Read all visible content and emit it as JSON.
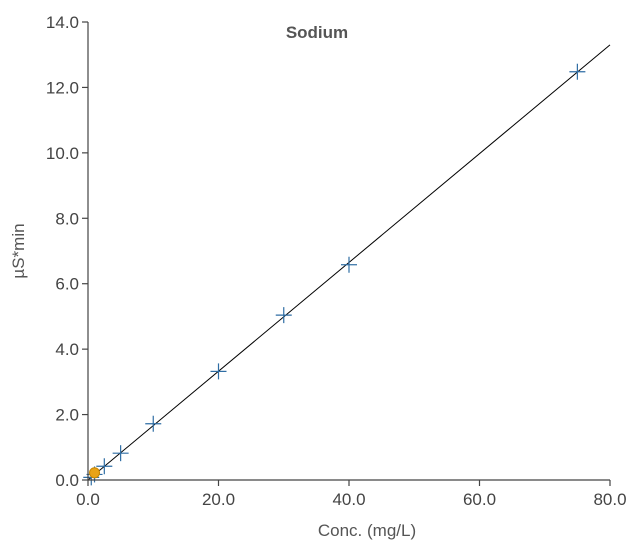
{
  "chart_data": {
    "type": "scatter",
    "title": "Sodium",
    "xlabel": "Conc. (mg/L)",
    "ylabel": "µS*min",
    "xlim": [
      0,
      80
    ],
    "ylim": [
      0,
      14
    ],
    "x_ticks": [
      "0.0",
      "20.0",
      "40.0",
      "60.0",
      "80.0"
    ],
    "y_ticks": [
      "0.0",
      "2.0",
      "4.0",
      "6.0",
      "8.0",
      "10.0",
      "12.0",
      "14.0"
    ],
    "grid": false,
    "legend": "none",
    "series": [
      {
        "marker": "plus",
        "color": "#2e6da4",
        "points": [
          {
            "x": 0.5,
            "y": 0.08
          },
          {
            "x": 1.0,
            "y": 0.17
          },
          {
            "x": 2.5,
            "y": 0.42
          },
          {
            "x": 5.0,
            "y": 0.82
          },
          {
            "x": 10.0,
            "y": 1.72
          },
          {
            "x": 20.0,
            "y": 3.32
          },
          {
            "x": 30.0,
            "y": 5.04
          },
          {
            "x": 40.0,
            "y": 6.58
          },
          {
            "x": 75.0,
            "y": 12.48
          }
        ]
      },
      {
        "marker": "circle",
        "color": "#e8a317",
        "points": [
          {
            "x": 1.0,
            "y": 0.22
          }
        ]
      }
    ],
    "fit_line": {
      "color": "#000000",
      "from": {
        "x": 0,
        "y": 0
      },
      "to": {
        "x": 80,
        "y": 13.3
      }
    }
  }
}
